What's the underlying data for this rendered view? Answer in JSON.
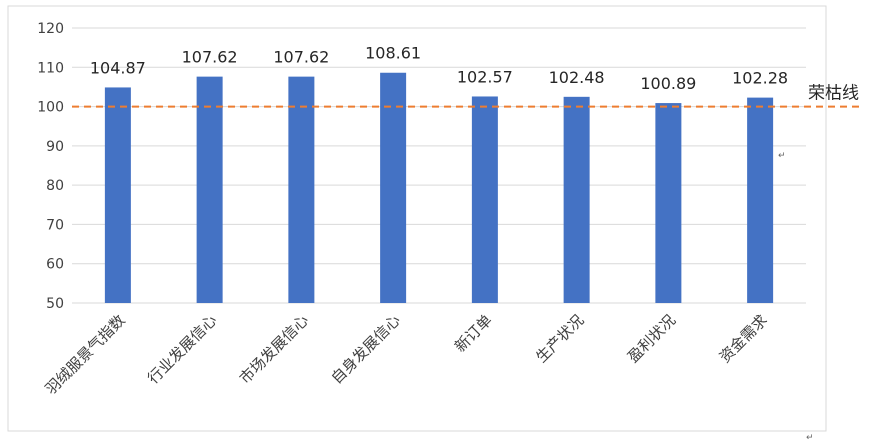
{
  "chart_data": {
    "type": "bar",
    "title": "",
    "xlabel": "",
    "ylabel": "",
    "categories": [
      "羽绒服景气指数",
      "行业发展信心",
      "市场发展信心",
      "自身发展信心",
      "新订单",
      "生产状况",
      "盈利状况",
      "资金需求"
    ],
    "values": [
      104.87,
      107.62,
      107.62,
      108.61,
      102.57,
      102.48,
      100.89,
      102.28
    ],
    "value_labels": [
      "104.87",
      "107.62",
      "107.62",
      "108.61",
      "102.57",
      "102.48",
      "100.89",
      "102.28"
    ],
    "ylim": [
      50,
      120
    ],
    "yticks": [
      50,
      60,
      70,
      80,
      90,
      100,
      110,
      120
    ],
    "grid": true,
    "bar_color": "#4472C4",
    "grid_color": "#D9D9D9",
    "reference_line": {
      "value": 100,
      "label": "荣枯线",
      "color": "#ED7D31",
      "style": "dashed"
    }
  },
  "annotations": {
    "return_mark": "↵"
  }
}
